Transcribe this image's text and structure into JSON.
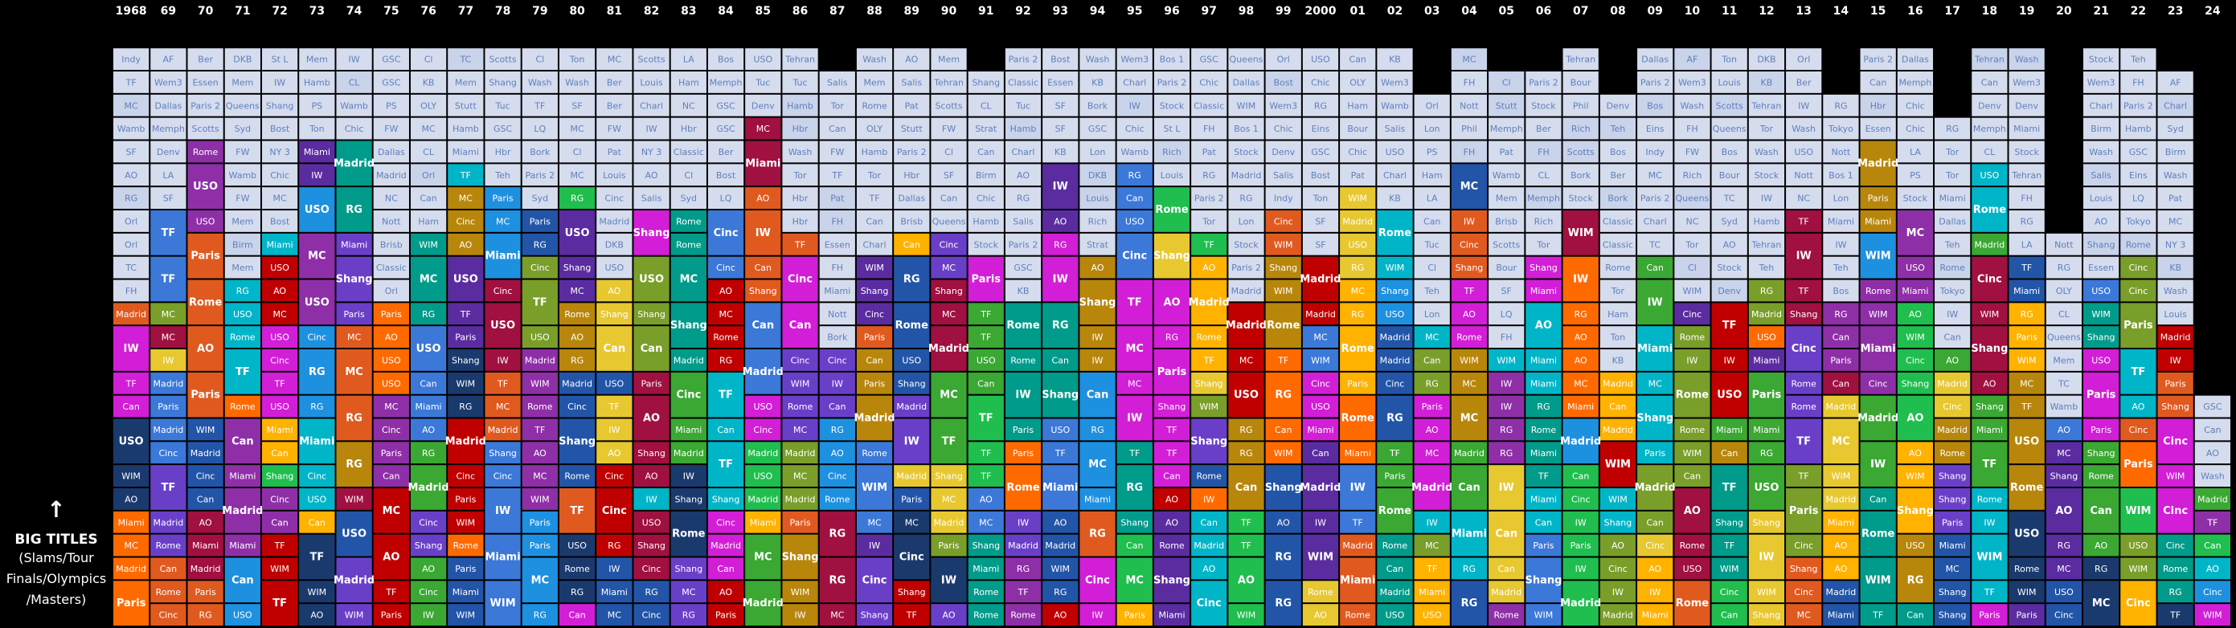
{
  "chart_data": {
    "type": "table",
    "years": [
      "1968",
      "69",
      "70",
      "71",
      "72",
      "73",
      "74",
      "75",
      "76",
      "77",
      "78",
      "79",
      "80",
      "81",
      "82",
      "83",
      "84",
      "85",
      "86",
      "87",
      "88",
      "89",
      "90",
      "91",
      "92",
      "93",
      "94",
      "95",
      "96",
      "97",
      "98",
      "99",
      "2000",
      "01",
      "02",
      "03",
      "04",
      "05",
      "06",
      "07",
      "08",
      "09",
      "10",
      "11",
      "12",
      "13",
      "14",
      "15",
      "16",
      "17",
      "18",
      "19",
      "20",
      "21",
      "22",
      "23",
      "24"
    ],
    "legend_arrow": "↑",
    "legend_title": "BIG TITLES",
    "legend_sub": [
      "(Slams/Tour",
      "Finals/Olympics",
      "/Masters)"
    ],
    "colors": {
      "filler": "#d5dced",
      "filler_text": "#5f80bd",
      "big_text": "#4d6db5",
      "player_palette": [
        "#8f2fa8",
        "#b8860b",
        "#3b78d8",
        "#1fbe4e",
        "#ff6a00",
        "#ffb200",
        "#00b5c8",
        "#d21ed6",
        "#2255a8",
        "#7a9e2a",
        "#c00000",
        "#1a3a6e",
        "#5a2ca0",
        "#009b8a",
        "#e8c830",
        "#e05a20",
        "#6a3fc8",
        "#3aa832",
        "#1e90e0",
        "#a01040"
      ],
      "special_dark": "#5a5a5a",
      "special_olive": "#9a8a10"
    },
    "tournament_short": [
      "AO",
      "RG",
      "WIM",
      "USO",
      "TF",
      "IW",
      "Miami",
      "MC",
      "Rome",
      "Madrid",
      "Can",
      "Cinc",
      "Shang",
      "Paris",
      "Ham",
      "Stock",
      "Stutt",
      "Essen",
      "GSC",
      "OLY",
      "Phil",
      "Queens",
      "LA",
      "SF",
      "Wash",
      "Tor",
      "Bos",
      "Memph",
      "Indy",
      "Nott",
      "NC",
      "Rich",
      "Syd",
      "Chic",
      "Bork",
      "St L",
      "Denv",
      "Tuc",
      "Louis",
      "Wamb",
      "Salis",
      "Lon",
      "Hamb",
      "Bost",
      "Tokyo",
      "Brisb",
      "Bour",
      "FW",
      "Wem3",
      "NY 3",
      "Paris 2",
      "Bos 1",
      "PS",
      "Birm",
      "Strat",
      "Dallas",
      "Mem",
      "Scotts",
      "Tehran",
      "Teh",
      "Stock",
      "Charl",
      "Classic",
      "TC",
      "Pat",
      "Ton",
      "Wash",
      "LQ",
      "Eins",
      "Ber",
      "KB",
      "DKB",
      "Orl",
      "Hbr",
      "FH",
      "AF",
      "Cl",
      "CL"
    ]
  }
}
